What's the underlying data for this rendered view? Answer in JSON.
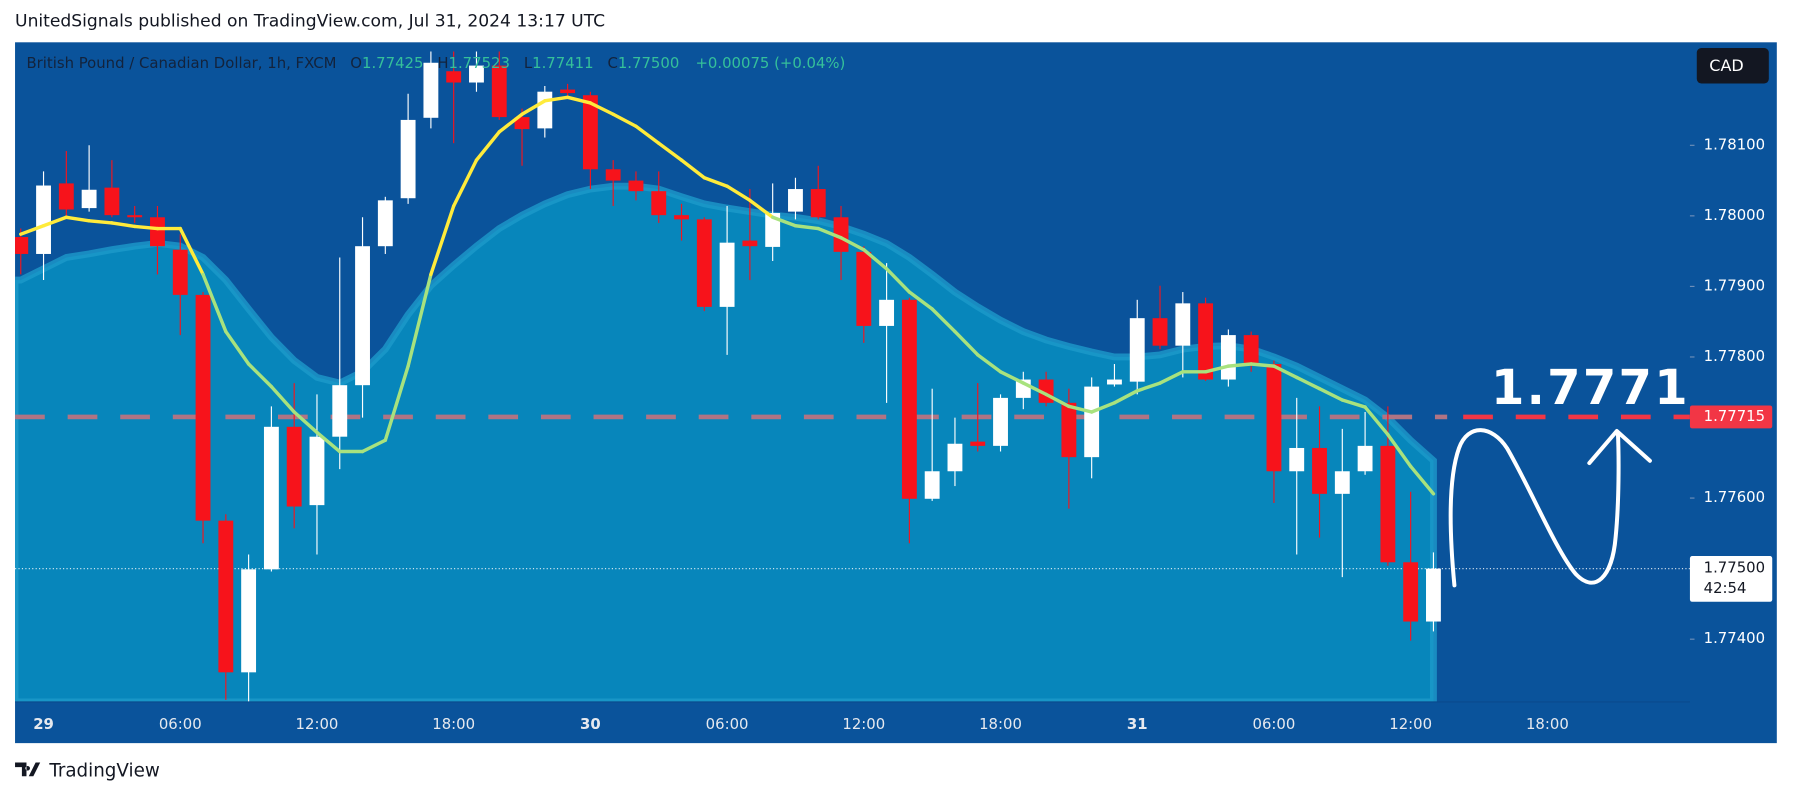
{
  "header": {
    "text": "UnitedSignals published on TradingView.com, Jul 31, 2024 13:17 UTC"
  },
  "footer": {
    "logo_text": "TradingView"
  },
  "chart_data": {
    "type": "candlestick",
    "title": "British Pound / Canadian Dollar, 1h, FXCM",
    "ohlc_legend": [
      {
        "label": "O",
        "value": "1.77425"
      },
      {
        "label": "H",
        "value": "1.77523"
      },
      {
        "label": "L",
        "value": "1.77411"
      },
      {
        "label": "C",
        "value": "1.77500"
      }
    ],
    "change": "+0.00075 (+0.04%)",
    "currency": "CAD",
    "categories": [
      null,
      "29",
      null,
      null,
      null,
      null,
      null,
      "06:00",
      null,
      null,
      null,
      null,
      null,
      "12:00",
      null,
      null,
      null,
      null,
      null,
      "18:00",
      null,
      null,
      null,
      null,
      null,
      "30",
      null,
      null,
      null,
      null,
      null,
      "06:00",
      null,
      null,
      null,
      null,
      null,
      "12:00",
      null,
      null,
      null,
      null,
      null,
      "18:00",
      null,
      null,
      null,
      null,
      null,
      "31",
      null,
      null,
      null,
      null,
      null,
      "06:00",
      null,
      null,
      null,
      null,
      null,
      "12:00",
      null,
      null,
      null,
      null,
      null,
      "18:00"
    ],
    "open": [
      1.7797,
      1.77946,
      1.78046,
      1.78011,
      1.7804,
      1.78001,
      1.77998,
      1.77952,
      1.77888,
      1.77568,
      1.77353,
      1.77499,
      1.77701,
      1.7759,
      1.77687,
      1.7776,
      1.77957,
      1.78025,
      1.78139,
      1.78205,
      1.78189,
      1.78213,
      1.7814,
      1.78124,
      1.78179,
      1.78171,
      1.78066,
      1.7805,
      1.78035,
      1.78001,
      1.77995,
      1.77871,
      1.77965,
      1.77956,
      1.78006,
      1.78038,
      1.77998,
      1.77949,
      1.77844,
      1.77881,
      1.77599,
      1.77638,
      1.7768,
      1.77674,
      1.77742,
      1.77768,
      1.77735,
      1.77658,
      1.77761,
      1.77765,
      1.77855,
      1.77816,
      1.77876,
      1.77768,
      1.77831,
      1.7779,
      1.77638,
      1.77671,
      1.77606,
      1.77638,
      1.77674,
      1.77509,
      1.77425,
      null,
      null,
      null,
      null,
      null
    ],
    "high": [
      1.77982,
      1.78063,
      1.78092,
      1.781,
      1.78079,
      1.78014,
      1.78014,
      1.77974,
      1.77892,
      1.77577,
      1.7752,
      1.7773,
      1.77763,
      1.77747,
      1.77941,
      1.77998,
      1.78027,
      1.78173,
      1.78233,
      1.78233,
      1.78233,
      1.78233,
      1.78152,
      1.78184,
      1.78187,
      1.78176,
      1.78079,
      1.78063,
      1.78063,
      1.78017,
      1.77998,
      1.78014,
      1.78038,
      1.78046,
      1.78054,
      1.78071,
      1.78014,
      1.77957,
      1.77933,
      1.77884,
      1.77755,
      1.77714,
      1.77763,
      1.77747,
      1.77779,
      1.77779,
      1.77755,
      1.77771,
      1.7779,
      1.77881,
      1.77901,
      1.77892,
      1.77884,
      1.77839,
      1.77836,
      1.77795,
      1.77742,
      1.7773,
      1.77698,
      1.77722,
      1.7773,
      1.77609,
      1.77523,
      null,
      null,
      null,
      null,
      null
    ],
    "low": [
      1.77917,
      1.77909,
      1.77998,
      1.78006,
      1.77998,
      1.7799,
      1.77917,
      1.77831,
      1.77536,
      1.77314,
      1.77311,
      1.77496,
      1.77557,
      1.7752,
      1.77641,
      1.77714,
      1.77946,
      1.78017,
      1.78124,
      1.78103,
      1.78176,
      1.78136,
      1.78071,
      1.78111,
      1.78168,
      1.78038,
      1.78014,
      1.78022,
      1.7799,
      1.77965,
      1.77865,
      1.77803,
      1.77909,
      1.77936,
      1.77995,
      1.77995,
      1.77909,
      1.7782,
      1.77735,
      1.77536,
      1.77596,
      1.77617,
      1.77666,
      1.77666,
      1.77726,
      1.7773,
      1.77585,
      1.77628,
      1.77758,
      1.77747,
      1.77811,
      1.77771,
      1.77766,
      1.77758,
      1.77779,
      1.77593,
      1.7752,
      1.77544,
      1.77488,
      1.77633,
      1.77504,
      1.77398,
      1.77411,
      null,
      null,
      null,
      null,
      null
    ],
    "close": [
      1.77946,
      1.78043,
      1.78009,
      1.78037,
      1.78001,
      1.77998,
      1.77957,
      1.77888,
      1.77568,
      1.77353,
      1.77499,
      1.77701,
      1.77588,
      1.77687,
      1.7776,
      1.77957,
      1.78022,
      1.78136,
      1.78217,
      1.78189,
      1.78213,
      1.7814,
      1.78123,
      1.78176,
      1.78174,
      1.78066,
      1.7805,
      1.78035,
      1.78001,
      1.77995,
      1.77871,
      1.77962,
      1.77957,
      1.78004,
      1.78038,
      1.77998,
      1.77949,
      1.77844,
      1.77881,
      1.77599,
      1.77638,
      1.77677,
      1.77674,
      1.77742,
      1.77768,
      1.77735,
      1.77658,
      1.77758,
      1.77768,
      1.77855,
      1.77816,
      1.77876,
      1.77768,
      1.77831,
      1.7779,
      1.77638,
      1.77671,
      1.77606,
      1.77638,
      1.77674,
      1.77509,
      1.77425,
      1.775,
      null,
      null,
      null,
      null,
      null
    ],
    "up_color": "#ffffff",
    "down_color": "#f7131b",
    "ma": {
      "color_above": "#ffeb3b",
      "color_below": "#a8e27e",
      "values": [
        1.77974,
        1.77986,
        1.77998,
        1.77993,
        1.7799,
        1.77985,
        1.77982,
        1.77982,
        1.77917,
        1.77836,
        1.7779,
        1.77758,
        1.77722,
        1.77693,
        1.77666,
        1.77666,
        1.77682,
        1.77787,
        1.77917,
        1.78014,
        1.78079,
        1.78119,
        1.78144,
        1.78163,
        1.78168,
        1.7816,
        1.78144,
        1.78127,
        1.78103,
        1.78079,
        1.78054,
        1.78042,
        1.78022,
        1.77998,
        1.77986,
        1.77982,
        1.77969,
        1.77952,
        1.77925,
        1.77892,
        1.77868,
        1.77836,
        1.77803,
        1.77779,
        1.77763,
        1.77747,
        1.7773,
        1.77722,
        1.77735,
        1.77752,
        1.77763,
        1.77779,
        1.77779,
        1.77787,
        1.7779,
        1.77787,
        1.77771,
        1.77755,
        1.77739,
        1.77729,
        1.7769,
        1.77645,
        1.77606,
        null,
        null,
        null,
        null,
        null
      ]
    },
    "band": {
      "color": "#0786bb",
      "edge_color": "#1d9acb",
      "values": [
        1.77909,
        1.77925,
        1.77941,
        1.77946,
        1.77952,
        1.77957,
        1.77961,
        1.77957,
        1.77941,
        1.77909,
        1.77868,
        1.77828,
        1.77795,
        1.77771,
        1.77763,
        1.77779,
        1.77811,
        1.7786,
        1.77901,
        1.7793,
        1.77957,
        1.77982,
        1.78001,
        1.78017,
        1.7803,
        1.78038,
        1.78042,
        1.78042,
        1.78038,
        1.78027,
        1.78017,
        1.78011,
        1.78006,
        1.78001,
        1.77998,
        1.77993,
        1.77985,
        1.77974,
        1.77961,
        1.77941,
        1.77917,
        1.77892,
        1.77871,
        1.77852,
        1.77836,
        1.77824,
        1.77815,
        1.77807,
        1.778,
        1.778,
        1.77803,
        1.77811,
        1.77815,
        1.77816,
        1.77811,
        1.778,
        1.77787,
        1.77771,
        1.77755,
        1.77739,
        1.77714,
        1.77682,
        1.77653,
        null,
        null,
        null,
        null,
        null
      ]
    },
    "ylim": [
      1.77311,
      1.78246
    ],
    "yticks": [
      {
        "value": 1.781,
        "label": "1.78100"
      },
      {
        "value": 1.78,
        "label": "1.78000"
      },
      {
        "value": 1.779,
        "label": "1.77900"
      },
      {
        "value": 1.778,
        "label": "1.77800"
      },
      {
        "value": 1.776,
        "label": "1.77600"
      },
      {
        "value": 1.774,
        "label": "1.77400"
      }
    ],
    "price_lines": [
      {
        "value": 1.77715,
        "label": "1.77715",
        "color": "#f23645",
        "past_color": "#b07484"
      },
      {
        "value": 1.775,
        "label": "1.77500",
        "countdown": "42:54",
        "color": "#ffffff"
      }
    ],
    "annotation": {
      "text": "1.7771"
    }
  }
}
